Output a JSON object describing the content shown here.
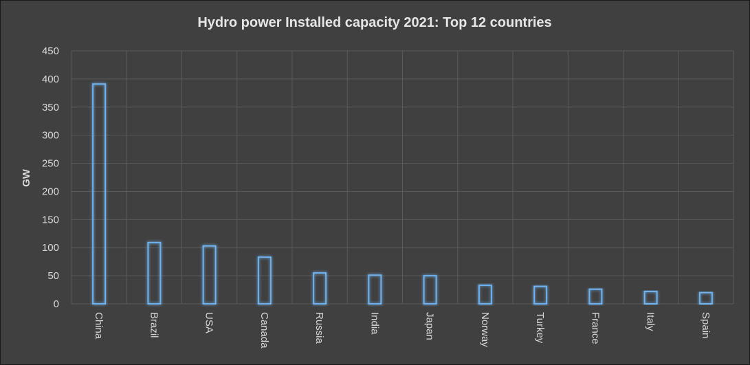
{
  "chart_data": {
    "type": "bar",
    "title": "Hydro power Installed capacity 2021: Top 12 countries",
    "xlabel": "",
    "ylabel": "GW",
    "categories": [
      "China",
      "Brazil",
      "USA",
      "Canada",
      "Russia",
      "India",
      "Japan",
      "Norway",
      "Turkey",
      "France",
      "Italy",
      "Spain"
    ],
    "values": [
      391,
      109,
      103,
      83,
      55,
      51,
      50,
      33,
      31,
      26,
      22,
      20
    ],
    "ylim": [
      0,
      450
    ],
    "yticks": [
      0,
      50,
      100,
      150,
      200,
      250,
      300,
      350,
      400,
      450
    ],
    "grid": true,
    "colors": {
      "background": "#404040",
      "bar_outline": "#6fb2ee",
      "grid": "#5a5a5a",
      "text": "#d9d9d9"
    }
  }
}
